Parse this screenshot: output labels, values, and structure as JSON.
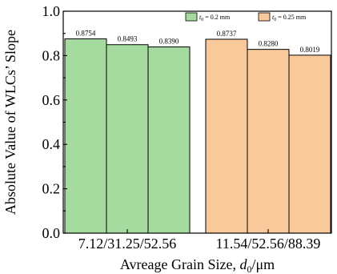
{
  "chart_data": {
    "type": "bar",
    "title": "",
    "xlabel": "Avreage Grain Size, d0/μm",
    "xlabel_parts": {
      "pre": "Avreage Grain Size, ",
      "var": "d",
      "sub": "0",
      "post": "/μm"
    },
    "ylabel": "Absolute Value of WLCs’ Slope",
    "ylim": [
      0.0,
      1.0
    ],
    "yticks": [
      "0.0",
      "0.2",
      "0.4",
      "0.6",
      "0.8",
      "1.0"
    ],
    "grid": false,
    "legend_position": "top-right",
    "groups": [
      {
        "category": "7.12/31.25/52.56",
        "series": "t0 = 0.2 mm",
        "color": "#a6dba0",
        "values": [
          0.8754,
          0.8493,
          0.839
        ],
        "labels": [
          "0.8754",
          "0.8493",
          "0.8390"
        ]
      },
      {
        "category": "11.54/52.56/88.39",
        "series": "t0 = 0.25 mm",
        "color": "#f9c99b",
        "values": [
          0.8737,
          0.828,
          0.8019
        ],
        "labels": [
          "0.8737",
          "0.8280",
          "0.8019"
        ]
      }
    ],
    "legend": [
      {
        "var": "t",
        "sub": "0",
        "text": " = 0.2 mm",
        "color": "#a6dba0"
      },
      {
        "var": "t",
        "sub": "0",
        "text": " = 0.25 mm",
        "color": "#f9c99b"
      }
    ]
  }
}
